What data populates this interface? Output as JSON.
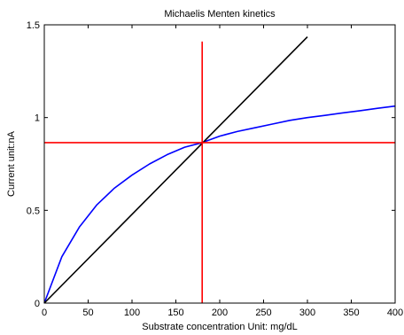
{
  "chart_data": {
    "type": "line",
    "title": "Michaelis Menten kinetics",
    "xlabel": "Substrate concentration Unit: mg/dL",
    "ylabel": "Current unit:nA",
    "xlim": [
      0,
      400
    ],
    "ylim": [
      0,
      1.5
    ],
    "xticks": [
      0,
      50,
      100,
      150,
      200,
      250,
      300,
      350,
      400
    ],
    "yticks": [
      0,
      0.5,
      1,
      1.5
    ],
    "xtick_labels": [
      "0",
      "50",
      "100",
      "150",
      "200",
      "250",
      "300",
      "350",
      "400"
    ],
    "ytick_labels": [
      "0",
      "0.5",
      "1",
      "1.5"
    ],
    "grid": false,
    "legend": "none",
    "series": [
      {
        "color": "#0000ff",
        "x": [
          0,
          20,
          40,
          60,
          80,
          100,
          120,
          140,
          160,
          180,
          200,
          220,
          240,
          260,
          280,
          300,
          320,
          340,
          360,
          380,
          400
        ],
        "y": [
          0,
          0.25,
          0.41,
          0.53,
          0.62,
          0.69,
          0.75,
          0.8,
          0.84,
          0.865,
          0.9,
          0.925,
          0.945,
          0.965,
          0.985,
          1.0,
          1.012,
          1.025,
          1.037,
          1.05,
          1.062
        ]
      },
      {
        "color": "#000000",
        "x": [
          0,
          300
        ],
        "y": [
          0,
          1.435
        ]
      },
      {
        "color": "#ff0000",
        "x": [
          180,
          180
        ],
        "y": [
          0,
          1.41
        ]
      },
      {
        "color": "#ff0000",
        "x": [
          0,
          400
        ],
        "y": [
          0.865,
          0.865
        ]
      }
    ]
  }
}
